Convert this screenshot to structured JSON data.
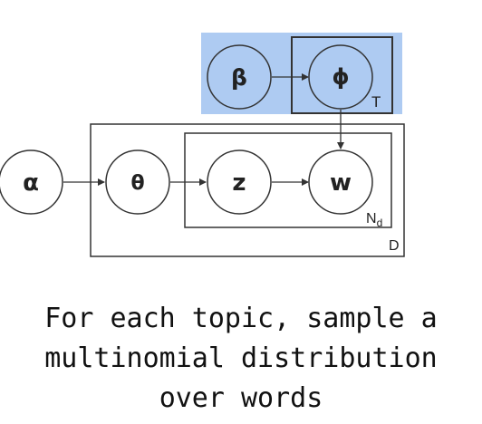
{
  "diagram": {
    "nodes": {
      "alpha": "α",
      "theta": "θ",
      "z": "z",
      "w": "w",
      "beta": "β",
      "phi": "ϕ"
    },
    "plates": {
      "topics": "T",
      "words": "N",
      "words_subscript": "d",
      "documents": "D"
    },
    "colors": {
      "highlight": "#aecbf2",
      "stroke": "#333333"
    }
  },
  "caption": {
    "line1": "For each topic, sample a",
    "line2": "multinomial distribution",
    "line3": "over words"
  }
}
